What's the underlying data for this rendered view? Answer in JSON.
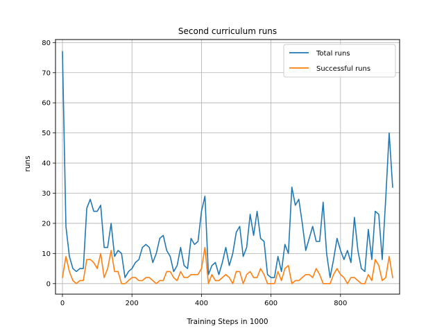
{
  "chart_data": {
    "type": "line",
    "title": "Second curriculum runs",
    "xlabel": "Training Steps in 1000",
    "ylabel": "runs",
    "xlim": [
      -20,
      970
    ],
    "ylim": [
      -3.5,
      81
    ],
    "xticks": [
      0,
      200,
      400,
      600,
      800
    ],
    "yticks": [
      0,
      10,
      20,
      30,
      40,
      50,
      60,
      70,
      80
    ],
    "grid": true,
    "legend_position": "top-right",
    "colors": {
      "total": "#1f77b4",
      "successful": "#ff7f0e",
      "grid": "#b0b0b0"
    },
    "x": [
      0,
      10,
      20,
      30,
      40,
      50,
      60,
      70,
      80,
      90,
      100,
      110,
      120,
      130,
      140,
      150,
      160,
      170,
      180,
      190,
      200,
      210,
      220,
      230,
      240,
      250,
      260,
      270,
      280,
      290,
      300,
      310,
      320,
      330,
      340,
      350,
      360,
      370,
      380,
      390,
      400,
      410,
      420,
      430,
      440,
      450,
      460,
      470,
      480,
      490,
      500,
      510,
      520,
      530,
      540,
      550,
      560,
      570,
      580,
      590,
      600,
      610,
      620,
      630,
      640,
      650,
      660,
      670,
      680,
      690,
      700,
      710,
      720,
      730,
      740,
      750,
      760,
      770,
      780,
      790,
      800,
      810,
      820,
      830,
      840,
      850,
      860,
      870,
      880,
      890,
      900,
      910,
      920,
      930,
      940,
      950
    ],
    "series": [
      {
        "name": "Total runs",
        "key": "total",
        "values": [
          77,
          19,
          9,
          5,
          4,
          5,
          5,
          25,
          28,
          24,
          24,
          26,
          12,
          12,
          20,
          9,
          11,
          10,
          2,
          4,
          5,
          7,
          8,
          12,
          13,
          12,
          7,
          10,
          15,
          16,
          11,
          9,
          4,
          6,
          12,
          6,
          5,
          15,
          13,
          14,
          24,
          29,
          3,
          6,
          7,
          3,
          7,
          12,
          6,
          10,
          17,
          19,
          9,
          12,
          23,
          16,
          24,
          15,
          14,
          3,
          2,
          2,
          9,
          4,
          13,
          10,
          32,
          26,
          28,
          20,
          11,
          15,
          19,
          14,
          14,
          27,
          10,
          2,
          8,
          15,
          11,
          8,
          11,
          7,
          22,
          11,
          5,
          4,
          18,
          8,
          24,
          23,
          8,
          28,
          50,
          32
        ]
      },
      {
        "name": "Successful runs",
        "key": "successful",
        "values": [
          2,
          9,
          4,
          1,
          0,
          1,
          1,
          8,
          8,
          7,
          5,
          10,
          2,
          5,
          11,
          4,
          4,
          0,
          0,
          1,
          2,
          2,
          1,
          1,
          2,
          2,
          1,
          0,
          1,
          1,
          4,
          4,
          2,
          1,
          4,
          2,
          2,
          3,
          3,
          3,
          5,
          12,
          0,
          3,
          1,
          1,
          2,
          3,
          2,
          0,
          4,
          4,
          0,
          3,
          4,
          2,
          2,
          5,
          3,
          0,
          0,
          0,
          4,
          1,
          5,
          6,
          0,
          1,
          1,
          2,
          3,
          3,
          2,
          5,
          3,
          0,
          0,
          0,
          3,
          5,
          3,
          2,
          0,
          2,
          2,
          1,
          0,
          0,
          3,
          1,
          8,
          6,
          1,
          2,
          9,
          2
        ]
      }
    ]
  }
}
